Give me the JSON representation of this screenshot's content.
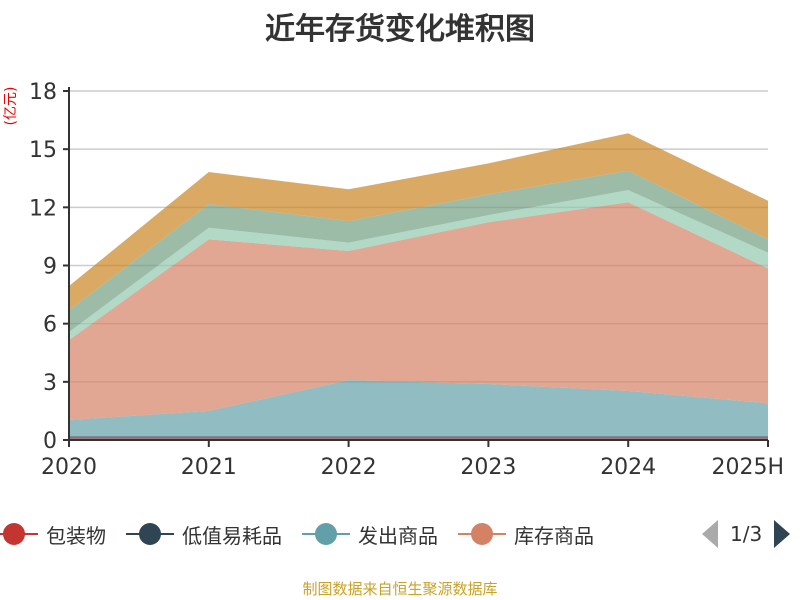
{
  "chart_data": {
    "type": "area",
    "stacked": true,
    "title": "近年存货变化堆积图",
    "ylabel": "(亿元)",
    "categories": [
      "2020",
      "2021",
      "2022",
      "2023",
      "2024",
      "2025H"
    ],
    "ylim": [
      0,
      18
    ],
    "yticks": [
      0,
      3,
      6,
      9,
      12,
      15,
      18
    ],
    "grid": true,
    "legend_placement": "bottom",
    "legend_page": "1/3",
    "series": [
      {
        "name": "包装物",
        "color": "#c23531",
        "values": [
          0.08,
          0.08,
          0.08,
          0.08,
          0.08,
          0.08
        ]
      },
      {
        "name": "低值易耗品",
        "color": "#2f4554",
        "values": [
          0.12,
          0.12,
          0.12,
          0.12,
          0.12,
          0.12
        ]
      },
      {
        "name": "发出商品",
        "color": "#61a0a8",
        "values": [
          0.83,
          1.3,
          2.89,
          2.69,
          2.33,
          1.69
        ]
      },
      {
        "name": "库存商品",
        "color": "#d48265",
        "values": [
          4.12,
          8.85,
          6.66,
          8.34,
          9.73,
          6.96
        ]
      },
      {
        "color": "#91c7ae",
        "values": [
          0.42,
          0.6,
          0.43,
          0.37,
          0.63,
          0.81
        ]
      },
      {
        "color": "#749f83",
        "values": [
          1.13,
          1.22,
          1.11,
          1.07,
          1.0,
          0.69
        ]
      },
      {
        "color": "#ca8622",
        "values": [
          1.24,
          1.65,
          1.64,
          1.6,
          1.93,
          1.99
        ]
      }
    ],
    "source": "制图数据来自恒生聚源数据库"
  }
}
